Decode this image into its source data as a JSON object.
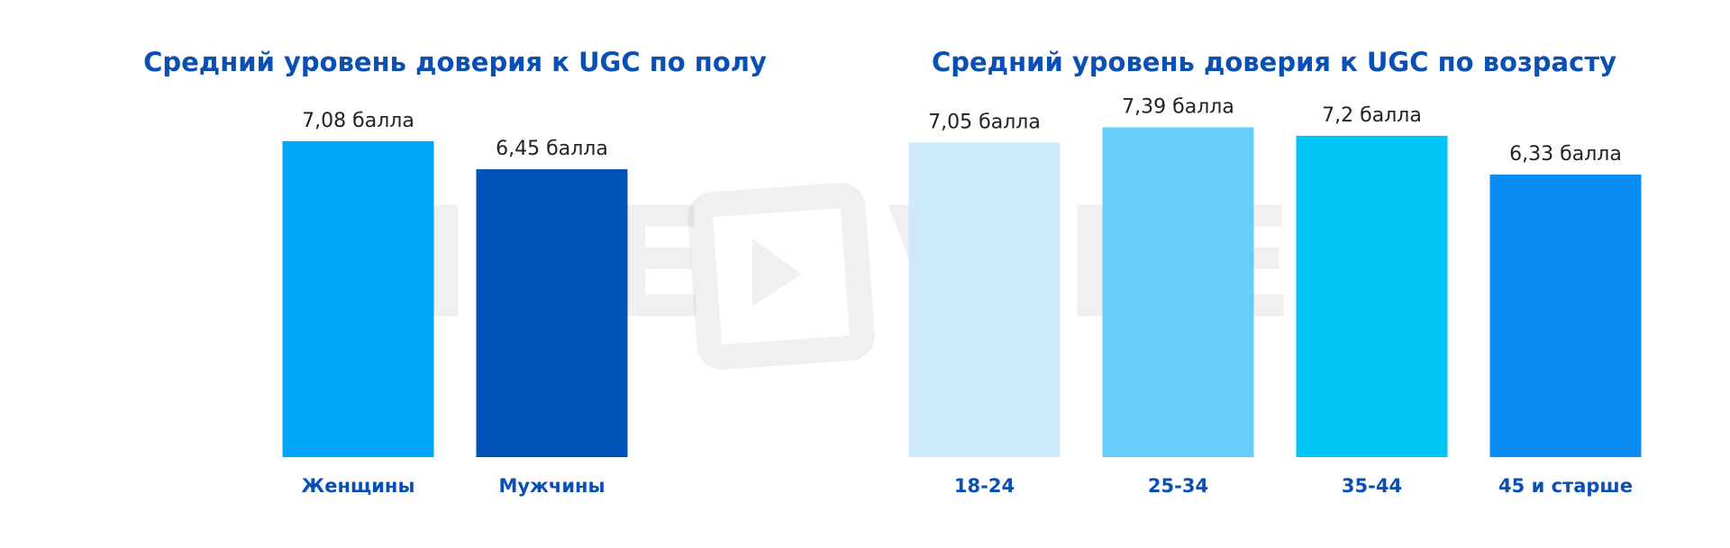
{
  "chart_data": [
    {
      "type": "bar",
      "title": "Средний уровень доверия к UGC по полу",
      "categories": [
        "Женщины",
        "Мужчины"
      ],
      "values": [
        7.08,
        6.45
      ],
      "value_labels": [
        "7,08 балла",
        "6,45 балла"
      ],
      "colors": [
        "#00a6f5",
        "#0052b8"
      ],
      "ylim": [
        0,
        10
      ]
    },
    {
      "type": "bar",
      "title": "Средний уровень доверия к UGC по возрасту",
      "categories": [
        "18-24",
        "25-34",
        "35-44",
        "45 и старше"
      ],
      "values": [
        7.05,
        7.39,
        7.2,
        6.33
      ],
      "value_labels": [
        "7,05 балла",
        "7,39 балла",
        "7,2 балла",
        "6,33 балла"
      ],
      "colors": [
        "#cdeafc",
        "#66ccfb",
        "#00c5f7",
        "#0a8cf5"
      ],
      "ylim": [
        0,
        10
      ]
    }
  ],
  "watermark": [
    "MOE",
    "VIDEO"
  ]
}
